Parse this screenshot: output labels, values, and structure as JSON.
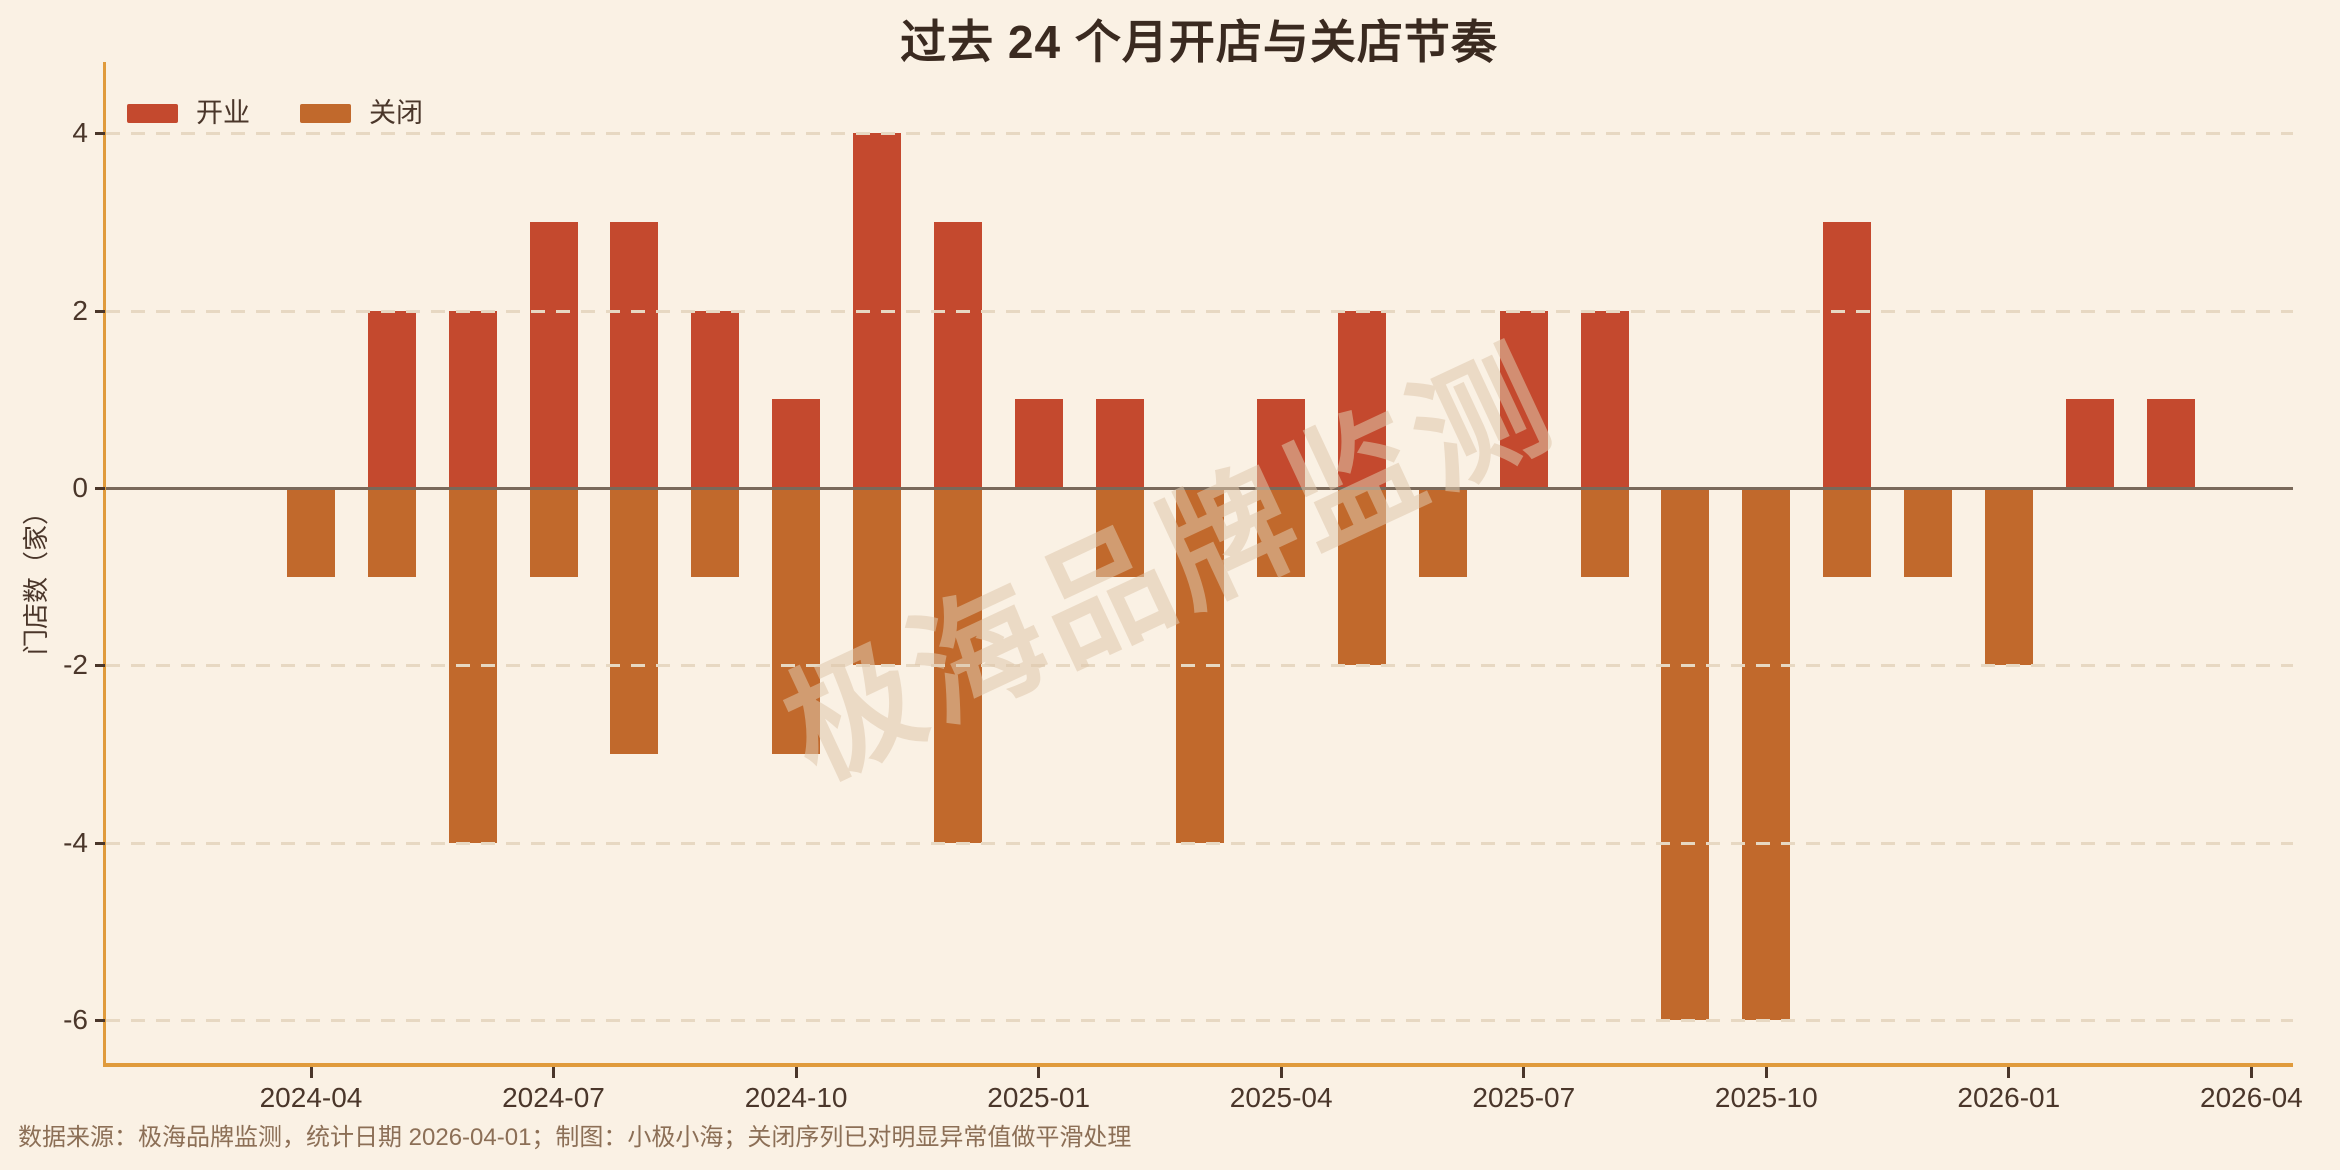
{
  "page": {
    "title": "过去 24 个月开店与关店节奏",
    "y_axis_label": "门店数（家）",
    "footer": "数据来源：极海品牌监测，统计日期 2026-04-01；制图：小极小海；关闭序列已对明显异常值做平滑处理",
    "watermark": "极海品牌监测"
  },
  "colors": {
    "background": "#FAF1E4",
    "open_bar": "#C4492E",
    "close_bar": "#C1692C",
    "axis_spine": "#E09B3C",
    "zero_line": "#79695A",
    "gridline": "#E7D8C2",
    "title_text": "#3A2A20",
    "tick_text": "#4A362A",
    "footer_text": "#8C6F56",
    "watermark_text": "rgba(222,198,172,0.55)"
  },
  "legend": {
    "items": [
      {
        "label": "开业"
      },
      {
        "label": "关闭"
      }
    ]
  },
  "chart_data": {
    "type": "bar",
    "title": "过去 24 个月开店与关店节奏",
    "xlabel": "",
    "ylabel": "门店数（家）",
    "categories": [
      "2024-04",
      "2024-05",
      "2024-06",
      "2024-07",
      "2024-08",
      "2024-09",
      "2024-10",
      "2024-11",
      "2024-12",
      "2025-01",
      "2025-02",
      "2025-03",
      "2025-04",
      "2025-05",
      "2025-06",
      "2025-07",
      "2025-08",
      "2025-09",
      "2025-10",
      "2025-11",
      "2025-12",
      "2026-01",
      "2026-02",
      "2026-03"
    ],
    "series": [
      {
        "name": "开业",
        "color": "#C4492E",
        "values": [
          0,
          2,
          2,
          3,
          3,
          2,
          1,
          4,
          3,
          1,
          1,
          0,
          1,
          2,
          0,
          2,
          2,
          0,
          0,
          3,
          0,
          0,
          1,
          1
        ]
      },
      {
        "name": "关闭",
        "color": "#C1692C",
        "values": [
          -1,
          -1,
          -4,
          -1,
          -3,
          -1,
          -3,
          -2,
          -4,
          0,
          -1,
          -4,
          -1,
          -2,
          -1,
          0,
          -1,
          -6,
          -6,
          -1,
          -1,
          -2,
          0,
          0
        ]
      }
    ],
    "x_tick_labels": [
      "2024-04",
      "2024-07",
      "2024-10",
      "2025-01",
      "2025-04",
      "2025-07",
      "2025-10",
      "2026-01",
      "2026-04"
    ],
    "x_tick_month_step": 3,
    "y_ticks": [
      4,
      2,
      0,
      -2,
      -4,
      -6
    ],
    "ylim": [
      -6.5,
      4.8
    ],
    "grid": true,
    "grid_style": "dashed",
    "legend_position": "top-left",
    "bar_orientation": "vertical-diverging"
  }
}
